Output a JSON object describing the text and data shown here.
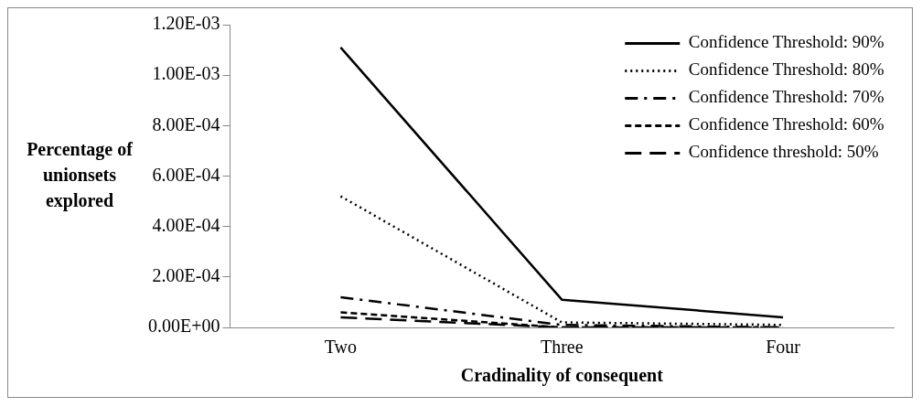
{
  "chart_data": {
    "type": "line",
    "xlabel": "Cradinality of consequent",
    "ylabel": "Percentage of unionsets explored",
    "categories": [
      "Two",
      "Three",
      "Four"
    ],
    "series": [
      {
        "name": "Confidence Threshold: 90%",
        "color": "#000000",
        "line_style": "solid",
        "values": [
          0.00111,
          0.00011,
          4e-05
        ]
      },
      {
        "name": "Confidence Threshold: 80%",
        "color": "#000000",
        "line_style": "dotted",
        "values": [
          0.00052,
          2e-05,
          1e-05
        ]
      },
      {
        "name": "Confidence Threshold: 70%",
        "color": "#000000",
        "line_style": "dashdot",
        "values": [
          0.00012,
          1e-05,
          0
        ]
      },
      {
        "name": "Confidence Threshold: 60%",
        "color": "#000000",
        "line_style": "dashed",
        "values": [
          6e-05,
          0,
          0
        ]
      },
      {
        "name": "Confidence threshold: 50%",
        "color": "#000000",
        "line_style": "longdash",
        "values": [
          4e-05,
          0,
          0
        ]
      }
    ],
    "ylim": [
      0,
      0.0012
    ],
    "yticks": [
      {
        "value": 0,
        "label": "0.00E+00"
      },
      {
        "value": 0.0002,
        "label": "2.00E-04"
      },
      {
        "value": 0.0004,
        "label": "4.00E-04"
      },
      {
        "value": 0.0006,
        "label": "6.00E-04"
      },
      {
        "value": 0.0008,
        "label": "8.00E-04"
      },
      {
        "value": 0.001,
        "label": "1.00E-03"
      },
      {
        "value": 0.0012,
        "label": "1.20E-03"
      }
    ],
    "grid": false,
    "legend": "top right",
    "marker": "none"
  }
}
